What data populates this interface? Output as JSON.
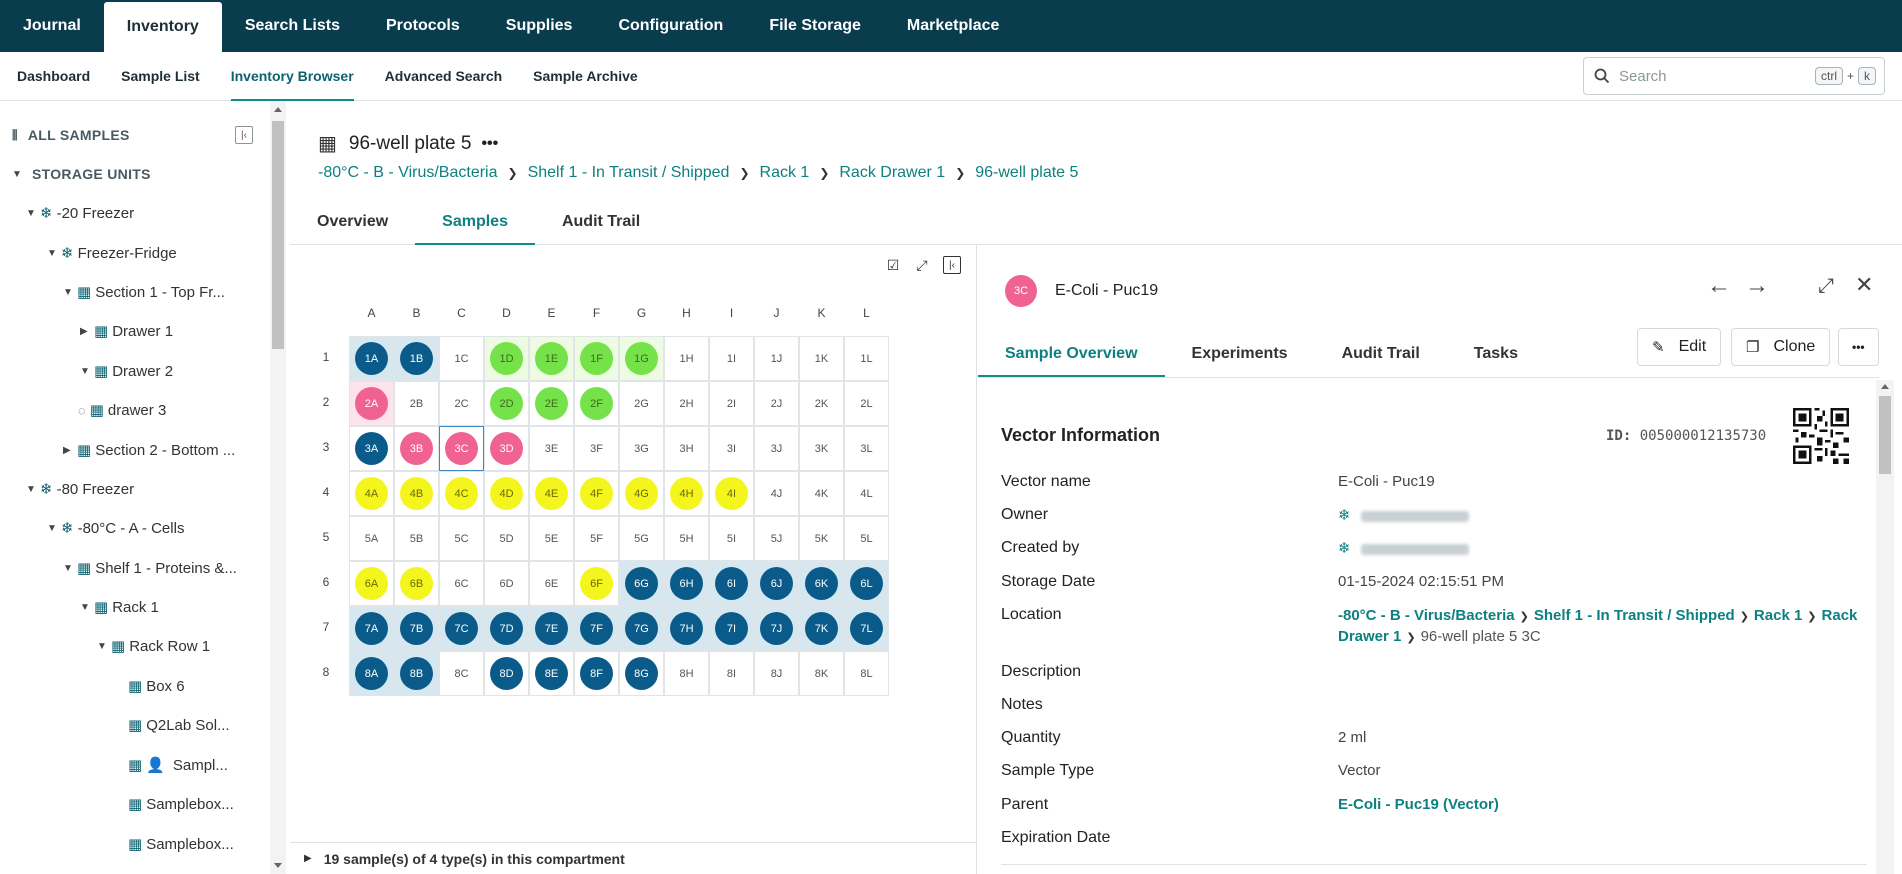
{
  "topnav": [
    "Journal",
    "Inventory",
    "Search Lists",
    "Protocols",
    "Supplies",
    "Configuration",
    "File Storage",
    "Marketplace"
  ],
  "subnav": [
    "Dashboard",
    "Sample List",
    "Inventory Browser",
    "Advanced Search",
    "Sample Archive"
  ],
  "search": {
    "placeholder": "Search",
    "key1": "ctrl",
    "plus": "+",
    "key2": "k"
  },
  "tree": {
    "all_samples": "ALL SAMPLES",
    "storage_units": "STORAGE UNITS",
    "items": [
      "-20 Freezer",
      "Freezer-Fridge",
      "Section 1 - Top Fr...",
      "Drawer 1",
      "Drawer 2",
      "drawer 3",
      "Section 2 - Bottom ...",
      "-80 Freezer",
      "-80°C - A - Cells",
      "Shelf 1 - Proteins &...",
      "Rack 1",
      "Rack Row 1",
      "Box 6",
      "Q2Lab Sol...",
      "Sampl...",
      "Samplebox...",
      "Samplebox..."
    ]
  },
  "plate": {
    "title": "96-well plate 5",
    "breadcrumbs": [
      "-80°C - B - Virus/Bacteria",
      "Shelf 1 - In Transit / Shipped",
      "Rack 1",
      "Rack Drawer 1",
      "96-well plate 5"
    ],
    "tabs": [
      "Overview",
      "Samples",
      "Audit Trail"
    ],
    "footer": "19 sample(s) of 4 type(s) in this compartment"
  },
  "sample": {
    "avatar": "3C",
    "name": "E-Coli - Puc19",
    "tabs": [
      "Sample Overview",
      "Experiments",
      "Audit Trail",
      "Tasks"
    ],
    "edit": "Edit",
    "clone": "Clone",
    "more": "•••",
    "section": "Vector Information",
    "id_label": "ID:",
    "id_value": "005000012135730",
    "fields": {
      "vector_name_label": "Vector name",
      "vector_name": "E-Coli - Puc19",
      "owner_label": "Owner",
      "created_by_label": "Created by",
      "storage_date_label": "Storage Date",
      "storage_date": "01-15-2024 02:15:51 PM",
      "location_label": "Location",
      "location_links": [
        "-80°C - B - Virus/Bacteria",
        "Shelf 1 - In Transit / Shipped",
        "Rack 1",
        "Rack Drawer 1"
      ],
      "location_tail": "96-well plate 5  3C",
      "description_label": "Description",
      "notes_label": "Notes",
      "quantity_label": "Quantity",
      "quantity": "2 ml",
      "sample_type_label": "Sample Type",
      "sample_type": "Vector",
      "parent_label": "Parent",
      "parent": "E-Coli - Puc19  (Vector)",
      "expiration_label": "Expiration Date"
    }
  },
  "colors": {
    "navy": "#093c4d",
    "teal": "#0d8080",
    "blue": "#0b5b8a",
    "pink": "#f06292",
    "green": "#76e24a",
    "yellow": "#f5f51e"
  }
}
